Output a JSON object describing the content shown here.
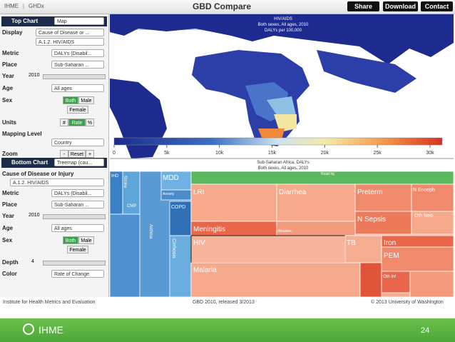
{
  "header": {
    "brand": "IHME",
    "separator": "|",
    "site": "GHDx",
    "title": "GBD Compare",
    "buttons": [
      "Share",
      "Download",
      "Contact"
    ]
  },
  "top_chart": {
    "title": "Top Chart",
    "chart_type": "Map",
    "display_label": "Display",
    "display": "Cause of Disease or ...",
    "cause": "A.1.2. HIV/AIDS",
    "metric_label": "Metric",
    "metric": "DALYs (Disabil...",
    "place_label": "Place",
    "place": "Sub-Saharan ...",
    "year_label": "Year",
    "year": "2010",
    "age_label": "Age",
    "age": "All ages",
    "sex_label": "Sex",
    "sex_options": [
      "Both",
      "Male",
      "Female"
    ],
    "units_label": "Units",
    "units_options": [
      "#",
      "Rate",
      "%"
    ],
    "mapping_level_label": "Mapping Level",
    "mapping_level": "Country",
    "zoom_label": "Zoom",
    "zoom_options": [
      "-",
      "Reset",
      "+"
    ]
  },
  "bottom_chart": {
    "title": "Bottom Chart",
    "chart_type": "Treemap (cau...",
    "cause_label": "Cause of Disease or Injury",
    "cause": "A.1.2. HIV/AIDS",
    "metric_label": "Metric",
    "metric": "DALYs (Disabil...",
    "place_label": "Place",
    "place": "Sub-Saharan ...",
    "year_label": "Year",
    "year": "2010",
    "age_label": "Age",
    "age": "All ages",
    "sex_label": "Sex",
    "sex_options": [
      "Both",
      "Male",
      "Female"
    ],
    "depth_label": "Depth",
    "depth": "4",
    "color_label": "Color",
    "color": "Rate of Change"
  },
  "map": {
    "title_lines": [
      "HIV/AIDS",
      "Both sexes, All ages, 2010",
      "DALYs per 100,000"
    ],
    "legend_ticks": [
      "0",
      "5k",
      "10k",
      "15k",
      "20k",
      "25k",
      "30k"
    ]
  },
  "treemap": {
    "title_lines": [
      "Sub-Saharan Africa, DALYs",
      "Both sexes, All ages, 2010"
    ],
    "labels": [
      "MDD",
      "IHD",
      "Stroke",
      "CMP",
      "Anxiety",
      "COPD",
      "Cirrhosis",
      "Asthma",
      "LRI",
      "Diarrhea",
      "Preterm",
      "N Enceph",
      "N Sepsis",
      "Oth Neo",
      "Meningitis",
      "Measles",
      "HIV",
      "TB",
      "Iron",
      "PEM",
      "Malaria",
      "Road Inj",
      "Oth Inf"
    ]
  },
  "footer": {
    "left": "Institute for Health Metrics and Evaluation",
    "center": "GBD 2010, released 3/2013",
    "right": "© 2013 University of Washington"
  },
  "slide": {
    "logo": "IHME",
    "page": "24"
  }
}
